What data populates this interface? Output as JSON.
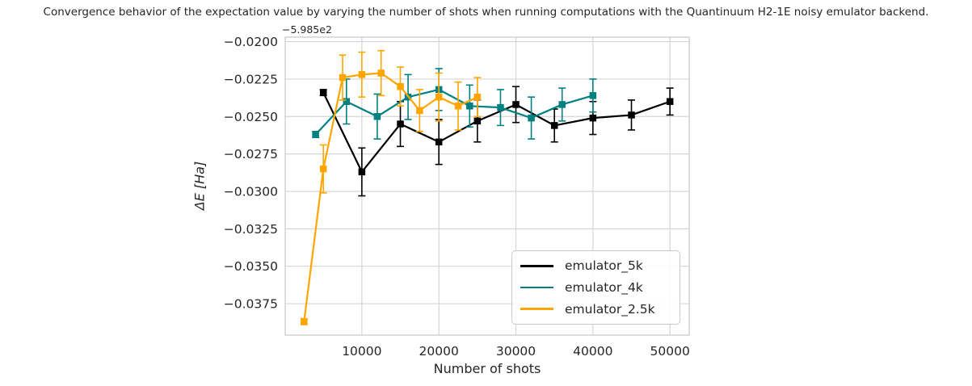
{
  "chart_data": {
    "type": "line",
    "title": "Convergence behavior of the expectation value by varying the number of shots when running computations with the Quantinuum H2-1E noisy emulator backend.",
    "xlabel": "Number of shots",
    "ylabel": "ΔE [Ha]",
    "y_offset_text": "−5.985e2",
    "grid": true,
    "legend_position": "lower-right-inside",
    "marker": "square",
    "xlim": [
      50,
      52500
    ],
    "ylim": [
      -0.0396,
      -0.0197
    ],
    "x_ticks": [
      10000,
      20000,
      30000,
      40000,
      50000
    ],
    "x_tick_labels": [
      "10000",
      "20000",
      "30000",
      "40000",
      "50000"
    ],
    "y_ticks": [
      -0.02,
      -0.0225,
      -0.025,
      -0.0275,
      -0.03,
      -0.0325,
      -0.035,
      -0.0375
    ],
    "y_tick_labels": [
      "−0.0200",
      "−0.0225",
      "−0.0250",
      "−0.0275",
      "−0.0300",
      "−0.0325",
      "−0.0350",
      "−0.0375"
    ],
    "series": [
      {
        "name": "emulator_5k",
        "color": "#000000",
        "x": [
          5000,
          10000,
          15000,
          20000,
          25000,
          30000,
          35000,
          40000,
          45000,
          50000
        ],
        "y": [
          -0.0234,
          -0.0287,
          -0.0255,
          -0.0267,
          -0.0253,
          -0.0242,
          -0.0256,
          -0.0251,
          -0.0249,
          -0.024
        ],
        "yerr": [
          0.0002,
          0.0016,
          0.0015,
          0.0015,
          0.0014,
          0.0012,
          0.0011,
          0.0011,
          0.001,
          0.0009
        ]
      },
      {
        "name": "emulator_4k",
        "color": "#008080",
        "x": [
          4000,
          8000,
          12000,
          16000,
          20000,
          24000,
          28000,
          32000,
          36000,
          40000
        ],
        "y": [
          -0.0262,
          -0.024,
          -0.025,
          -0.0237,
          -0.0232,
          -0.0243,
          -0.0244,
          -0.0251,
          -0.0242,
          -0.0236
        ],
        "yerr": [
          0.0002,
          0.0015,
          0.0015,
          0.0015,
          0.0014,
          0.0014,
          0.0012,
          0.0014,
          0.0011,
          0.0011
        ]
      },
      {
        "name": "emulator_2.5k",
        "color": "#ffa500",
        "x": [
          2500,
          5000,
          7500,
          10000,
          12500,
          15000,
          17500,
          20000,
          22500,
          25000
        ],
        "y": [
          -0.0387,
          -0.0285,
          -0.0224,
          -0.0222,
          -0.0221,
          -0.023,
          -0.0246,
          -0.0237,
          -0.0243,
          -0.0237
        ],
        "yerr": [
          0.0002,
          0.0016,
          0.0015,
          0.0015,
          0.0015,
          0.0013,
          0.0014,
          0.0016,
          0.0016,
          0.0013
        ]
      }
    ]
  },
  "style": {
    "grid_color": "#d5d5d5",
    "frame_color": "#c8c8c8",
    "text_color": "#262626",
    "background": "#ffffff"
  }
}
